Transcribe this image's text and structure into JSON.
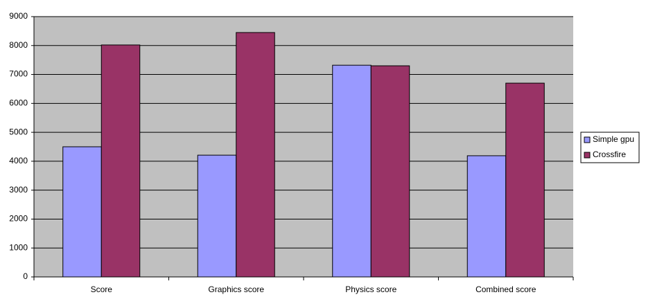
{
  "chart_data": {
    "type": "bar",
    "categories": [
      "Score",
      "Graphics score",
      "Physics score",
      "Combined score"
    ],
    "series": [
      {
        "name": "Simple gpu",
        "color": "#9999ff",
        "values": [
          4500,
          4210,
          7320,
          4190
        ]
      },
      {
        "name": "Crossfire",
        "color": "#993366",
        "values": [
          8020,
          8450,
          7300,
          6700
        ]
      }
    ],
    "ylim": [
      0,
      9000
    ],
    "yticks": [
      0,
      1000,
      2000,
      3000,
      4000,
      5000,
      6000,
      7000,
      8000,
      9000
    ],
    "grid": true,
    "legend": "right"
  }
}
